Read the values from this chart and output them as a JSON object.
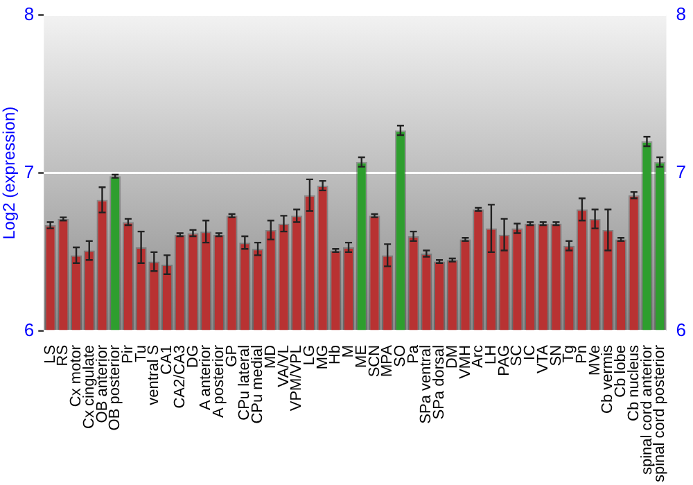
{
  "chart_data": {
    "type": "bar",
    "ylabel": "Log2 (expression)",
    "categories": [
      "LS",
      "RS",
      "Cx motor",
      "Cx cingulate",
      "OB anterior",
      "OB posterior",
      "Pir",
      "Tu",
      "ventral S",
      "CA1",
      "CA2/CA3",
      "DG",
      "A anterior",
      "A posterior",
      "GP",
      "CPu lateral",
      "CPu medial",
      "MD",
      "VA/VL",
      "VPM/VPL",
      "LG",
      "MG",
      "Hb",
      "M",
      "ME",
      "SCN",
      "MPA",
      "SO",
      "Pa",
      "SPa ventral",
      "SPa dorsal",
      "DM",
      "VMH",
      "Arc",
      "LH",
      "PAG",
      "SC",
      "IC",
      "VTA",
      "SN",
      "Tg",
      "Pn",
      "MVe",
      "Cb vermis",
      "Cb lobe",
      "Cb nucleus",
      "spinal cord anterior",
      "spinal cord posterior"
    ],
    "values": [
      6.67,
      6.71,
      6.48,
      6.51,
      6.83,
      6.98,
      6.69,
      6.53,
      6.44,
      6.42,
      6.61,
      6.62,
      6.63,
      6.61,
      6.73,
      6.56,
      6.52,
      6.64,
      6.68,
      6.73,
      6.86,
      6.92,
      6.51,
      6.53,
      7.07,
      6.73,
      6.48,
      7.27,
      6.6,
      6.49,
      6.44,
      6.45,
      6.58,
      6.77,
      6.65,
      6.61,
      6.65,
      6.68,
      6.68,
      6.68,
      6.54,
      6.77,
      6.71,
      6.64,
      6.58,
      6.86,
      7.2,
      7.07
    ],
    "errors": [
      0.02,
      0.01,
      0.05,
      0.06,
      0.08,
      0.01,
      0.02,
      0.1,
      0.06,
      0.06,
      0.01,
      0.02,
      0.07,
      0.01,
      0.01,
      0.04,
      0.04,
      0.06,
      0.05,
      0.04,
      0.1,
      0.03,
      0.01,
      0.03,
      0.03,
      0.01,
      0.07,
      0.03,
      0.03,
      0.02,
      0.01,
      0.01,
      0.01,
      0.01,
      0.15,
      0.1,
      0.03,
      0.01,
      0.01,
      0.01,
      0.03,
      0.07,
      0.06,
      0.13,
      0.01,
      0.02,
      0.03,
      0.03
    ],
    "colors": [
      "#b83232",
      "#b83232",
      "#b83232",
      "#b83232",
      "#b83232",
      "#2e9e2e",
      "#b83232",
      "#b83232",
      "#b83232",
      "#b83232",
      "#b83232",
      "#b83232",
      "#b83232",
      "#b83232",
      "#b83232",
      "#b83232",
      "#b83232",
      "#b83232",
      "#b83232",
      "#b83232",
      "#b83232",
      "#b83232",
      "#b83232",
      "#b83232",
      "#2e9e2e",
      "#b83232",
      "#b83232",
      "#2e9e2e",
      "#b83232",
      "#b83232",
      "#b83232",
      "#b83232",
      "#b83232",
      "#b83232",
      "#b83232",
      "#b83232",
      "#b83232",
      "#b83232",
      "#b83232",
      "#b83232",
      "#b83232",
      "#b83232",
      "#b83232",
      "#b83232",
      "#b83232",
      "#b83232",
      "#2e9e2e",
      "#2e9e2e"
    ],
    "ylim": [
      6,
      8
    ],
    "yticks": [
      6,
      7,
      8
    ],
    "y2lim": [
      6,
      8
    ],
    "y2ticks": [
      6,
      7,
      8
    ],
    "grid": "y",
    "legend": false
  }
}
